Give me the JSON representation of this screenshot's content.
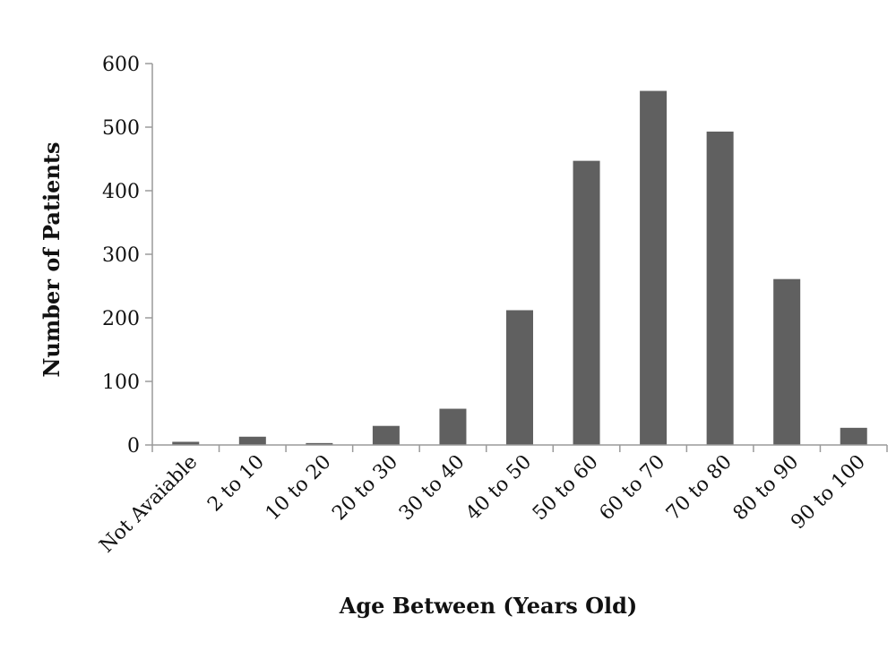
{
  "chart_data": {
    "type": "bar",
    "title": "",
    "xlabel": "Age Between (Years Old)",
    "ylabel": "Number of Patients",
    "categories": [
      "Not Avaiable",
      "2 to 10",
      "10 to 20",
      "20 to 30",
      "30 to 40",
      "40 to 50",
      "50 to 60",
      "60 to 70",
      "70 to 80",
      "80 to 90",
      "90 to 100"
    ],
    "values": [
      5,
      13,
      3,
      30,
      57,
      212,
      447,
      557,
      493,
      261,
      27
    ],
    "ylim": [
      0,
      600
    ],
    "yticks": [
      0,
      100,
      200,
      300,
      400,
      500,
      600
    ],
    "grid": false,
    "legend": "none",
    "bar_color": "#606060",
    "axis_color": "#9a9a9a"
  }
}
